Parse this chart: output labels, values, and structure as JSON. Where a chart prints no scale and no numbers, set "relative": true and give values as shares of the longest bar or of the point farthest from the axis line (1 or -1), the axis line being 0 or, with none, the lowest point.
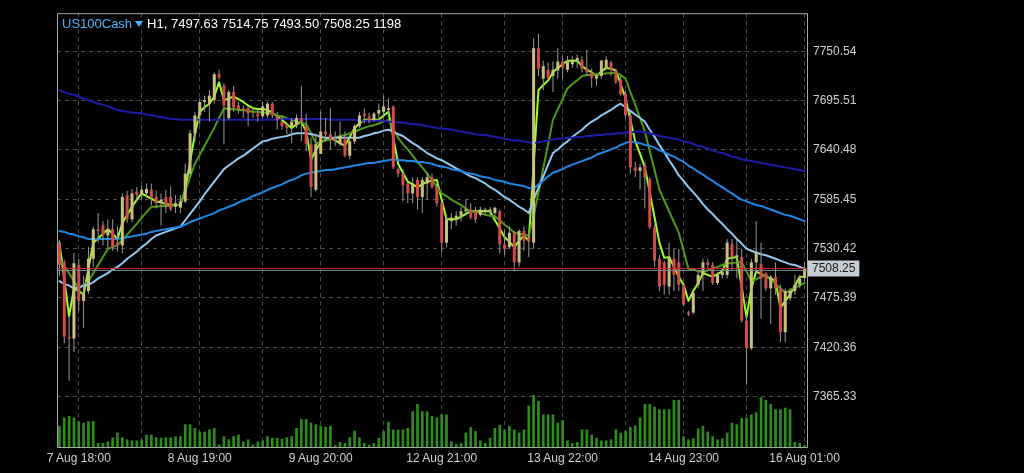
{
  "chart_data": [
    {
      "type": "candlestick",
      "title": "US100Cash",
      "subtitle": "H1, 7497.63 7514.75 7493.50 7508.25 1198",
      "categories": [
        null,
        null,
        null,
        null,
        "7 Aug 18:00",
        null,
        null,
        null,
        null,
        null,
        null,
        null,
        null,
        null,
        null,
        null,
        null,
        null,
        null,
        null,
        null,
        null,
        null,
        null,
        null,
        null,
        null,
        null,
        null,
        "8 Aug 19:00",
        null,
        null,
        null,
        null,
        null,
        null,
        null,
        null,
        null,
        null,
        null,
        null,
        null,
        null,
        null,
        null,
        null,
        null,
        null,
        null,
        null,
        null,
        null,
        null,
        "9 Aug 20:00",
        null,
        null,
        null,
        null,
        null,
        null,
        null,
        null,
        null,
        null,
        null,
        null,
        null,
        null,
        null,
        null,
        null,
        null,
        null,
        null,
        null,
        null,
        null,
        null,
        "12 Aug 21:00",
        null,
        null,
        null,
        null,
        null,
        null,
        null,
        null,
        null,
        null,
        null,
        null,
        null,
        null,
        null,
        null,
        null,
        null,
        null,
        null,
        null,
        null,
        null,
        null,
        "13 Aug 22:00",
        null,
        null,
        null,
        null,
        null,
        null,
        null,
        null,
        null,
        null,
        null,
        null,
        null,
        null,
        null,
        null,
        null,
        null,
        null,
        null,
        null,
        null,
        null,
        null,
        "14 Aug 23:00",
        null,
        null,
        null,
        null,
        null,
        null,
        null,
        null,
        null,
        null,
        null,
        null,
        null,
        null,
        null,
        null,
        null,
        null,
        null,
        null,
        null,
        null,
        null,
        null,
        "16 Aug 01:00"
      ],
      "ohlc": [
        [
          7535,
          7540,
          7500,
          7512
        ],
        [
          7515,
          7518,
          7425,
          7432
        ],
        [
          7432,
          7455,
          7383,
          7430
        ],
        [
          7430,
          7526,
          7415,
          7514
        ],
        [
          7512,
          7519,
          7461,
          7472
        ],
        [
          7472,
          7500,
          7442,
          7480
        ],
        [
          7483,
          7532,
          7480,
          7519
        ],
        [
          7519,
          7555,
          7510,
          7552
        ],
        [
          7552,
          7570,
          7537,
          7550
        ],
        [
          7556,
          7561,
          7534,
          7545
        ],
        [
          7545,
          7563,
          7530,
          7552
        ],
        [
          7552,
          7563,
          7528,
          7532
        ],
        [
          7537,
          7555,
          7527,
          7534
        ],
        [
          7534,
          7592,
          7525,
          7588
        ],
        [
          7590,
          7595,
          7559,
          7563
        ],
        [
          7563,
          7597,
          7560,
          7592
        ],
        [
          7594,
          7599,
          7582,
          7590
        ],
        [
          7590,
          7601,
          7585,
          7596
        ],
        [
          7592,
          7603,
          7587,
          7597
        ],
        [
          7596,
          7603,
          7579,
          7587
        ],
        [
          7588,
          7595,
          7575,
          7581
        ],
        [
          7582,
          7592,
          7556,
          7585
        ],
        [
          7588,
          7596,
          7570,
          7579
        ],
        [
          7588,
          7600,
          7572,
          7574
        ],
        [
          7577,
          7590,
          7570,
          7581
        ],
        [
          7576,
          7590,
          7570,
          7583
        ],
        [
          7583,
          7625,
          7581,
          7614
        ],
        [
          7614,
          7663,
          7610,
          7659
        ],
        [
          7659,
          7683,
          7649,
          7679
        ],
        [
          7679,
          7698,
          7669,
          7694
        ],
        [
          7694,
          7701,
          7683,
          7696
        ],
        [
          7692,
          7707,
          7672,
          7701
        ],
        [
          7696,
          7727,
          7692,
          7725
        ],
        [
          7725,
          7730,
          7719,
          7721
        ],
        [
          7712,
          7715,
          7647,
          7690
        ],
        [
          7676,
          7707,
          7674,
          7705
        ],
        [
          7705,
          7712,
          7683,
          7688
        ],
        [
          7690,
          7694,
          7681,
          7686
        ],
        [
          7687,
          7690,
          7676,
          7685
        ],
        [
          7687,
          7689,
          7667,
          7681
        ],
        [
          7683,
          7687,
          7676,
          7682
        ],
        [
          7681,
          7685,
          7672,
          7678
        ],
        [
          7678,
          7694,
          7676,
          7689
        ],
        [
          7679,
          7694,
          7676,
          7692
        ],
        [
          7692,
          7694,
          7676,
          7679
        ],
        [
          7678,
          7683,
          7663,
          7674
        ],
        [
          7672,
          7678,
          7663,
          7667
        ],
        [
          7668,
          7670,
          7658,
          7665
        ],
        [
          7667,
          7676,
          7648,
          7672
        ],
        [
          7668,
          7680,
          7665,
          7676
        ],
        [
          7676,
          7712,
          7650,
          7672
        ],
        [
          7667,
          7681,
          7639,
          7647
        ],
        [
          7647,
          7654,
          7588,
          7599
        ],
        [
          7596,
          7658,
          7594,
          7647
        ],
        [
          7636,
          7683,
          7636,
          7661
        ],
        [
          7661,
          7676,
          7650,
          7658
        ],
        [
          7658,
          7687,
          7641,
          7652
        ],
        [
          7654,
          7661,
          7645,
          7651
        ],
        [
          7647,
          7672,
          7645,
          7656
        ],
        [
          7654,
          7661,
          7632,
          7634
        ],
        [
          7634,
          7654,
          7630,
          7650
        ],
        [
          7650,
          7669,
          7647,
          7667
        ],
        [
          7667,
          7683,
          7665,
          7679
        ],
        [
          7681,
          7687,
          7670,
          7678
        ],
        [
          7678,
          7682,
          7670,
          7674
        ],
        [
          7674,
          7683,
          7672,
          7681
        ],
        [
          7681,
          7692,
          7674,
          7685
        ],
        [
          7683,
          7701,
          7676,
          7689
        ],
        [
          7685,
          7698,
          7679,
          7687
        ],
        [
          7689,
          7690,
          7619,
          7621
        ],
        [
          7619,
          7621,
          7610,
          7614
        ],
        [
          7614,
          7619,
          7583,
          7601
        ],
        [
          7603,
          7605,
          7581,
          7592
        ],
        [
          7592,
          7610,
          7581,
          7603
        ],
        [
          7607,
          7610,
          7574,
          7588
        ],
        [
          7588,
          7610,
          7570,
          7607
        ],
        [
          7603,
          7616,
          7585,
          7610
        ],
        [
          7610,
          7614,
          7597,
          7599
        ],
        [
          7599,
          7603,
          7577,
          7581
        ],
        [
          7581,
          7583,
          7526,
          7537
        ],
        [
          7537,
          7568,
          7532,
          7563
        ],
        [
          7561,
          7570,
          7552,
          7565
        ],
        [
          7563,
          7572,
          7556,
          7567
        ],
        [
          7567,
          7577,
          7561,
          7572
        ],
        [
          7572,
          7585,
          7567,
          7574
        ],
        [
          7574,
          7581,
          7563,
          7565
        ],
        [
          7572,
          7577,
          7559,
          7563
        ],
        [
          7568,
          7577,
          7566,
          7574
        ],
        [
          7572,
          7576,
          7568,
          7574
        ],
        [
          7572,
          7577,
          7568,
          7574
        ],
        [
          7570,
          7577,
          7566,
          7576
        ],
        [
          7572,
          7574,
          7525,
          7535
        ],
        [
          7535,
          7552,
          7523,
          7530
        ],
        [
          7532,
          7555,
          7530,
          7548
        ],
        [
          7548,
          7550,
          7505,
          7515
        ],
        [
          7515,
          7552,
          7510,
          7550
        ],
        [
          7550,
          7555,
          7528,
          7539
        ],
        [
          7543,
          7552,
          7521,
          7539
        ],
        [
          7537,
          7765,
          7530,
          7754
        ],
        [
          7754,
          7770,
          7723,
          7731
        ],
        [
          7720,
          7740,
          7707,
          7734
        ],
        [
          7730,
          7738,
          7720,
          7721
        ],
        [
          7723,
          7739,
          7705,
          7730
        ],
        [
          7729,
          7754,
          7720,
          7739
        ],
        [
          7739,
          7745,
          7720,
          7732
        ],
        [
          7730,
          7745,
          7727,
          7739
        ],
        [
          7736,
          7745,
          7732,
          7741
        ],
        [
          7740,
          7747,
          7732,
          7743
        ],
        [
          7741,
          7745,
          7727,
          7731
        ],
        [
          7731,
          7752,
          7723,
          7727
        ],
        [
          7727,
          7731,
          7710,
          7721
        ],
        [
          7720,
          7725,
          7712,
          7723
        ],
        [
          7723,
          7741,
          7720,
          7740
        ],
        [
          7732,
          7745,
          7730,
          7741
        ],
        [
          7738,
          7740,
          7723,
          7730
        ],
        [
          7729,
          7731,
          7714,
          7716
        ],
        [
          7719,
          7723,
          7701,
          7703
        ],
        [
          7703,
          7707,
          7676,
          7679
        ],
        [
          7679,
          7683,
          7614,
          7621
        ],
        [
          7621,
          7627,
          7610,
          7617
        ],
        [
          7617,
          7625,
          7596,
          7621
        ],
        [
          7623,
          7627,
          7575,
          7610
        ],
        [
          7608,
          7610,
          7552,
          7554
        ],
        [
          7554,
          7557,
          7510,
          7517
        ],
        [
          7519,
          7523,
          7483,
          7488
        ],
        [
          7515,
          7517,
          7479,
          7490
        ],
        [
          7488,
          7537,
          7479,
          7521
        ],
        [
          7519,
          7530,
          7483,
          7501
        ],
        [
          7515,
          7530,
          7483,
          7490
        ],
        [
          7490,
          7490,
          7466,
          7468
        ],
        [
          7459,
          7461,
          7455,
          7457
        ],
        [
          7459,
          7483,
          7457,
          7481
        ],
        [
          7490,
          7504,
          7486,
          7501
        ],
        [
          7501,
          7519,
          7483,
          7515
        ],
        [
          7515,
          7519,
          7508,
          7512
        ],
        [
          7512,
          7515,
          7490,
          7492
        ],
        [
          7492,
          7504,
          7490,
          7501
        ],
        [
          7501,
          7508,
          7497,
          7504
        ],
        [
          7501,
          7541,
          7497,
          7537
        ],
        [
          7535,
          7541,
          7506,
          7521
        ],
        [
          7521,
          7541,
          7497,
          7523
        ],
        [
          7521,
          7530,
          7448,
          7450
        ],
        [
          7450,
          7457,
          7379,
          7419
        ],
        [
          7419,
          7519,
          7417,
          7515
        ],
        [
          7515,
          7561,
          7503,
          7526
        ],
        [
          7513,
          7537,
          7452,
          7497
        ],
        [
          7503,
          7504,
          7483,
          7486
        ],
        [
          7486,
          7501,
          7446,
          7499
        ],
        [
          7499,
          7515,
          7479,
          7486
        ],
        [
          7486,
          7490,
          7426,
          7437
        ],
        [
          7437,
          7486,
          7426,
          7483
        ],
        [
          7475,
          7486,
          7472,
          7483
        ],
        [
          7483,
          7501,
          7479,
          7490
        ],
        [
          7490,
          7501,
          7486,
          7497
        ],
        [
          7497.63,
          7514.75,
          7493.5,
          7508.25
        ]
      ],
      "series": [
        {
          "type": "line",
          "color": "#1c1ca8",
          "values": [
            7707,
            7705,
            7703,
            7702,
            7700,
            7698,
            7696,
            7694,
            7692,
            7691,
            7689,
            7687,
            7685,
            7684,
            7683,
            7682,
            7682,
            7681,
            7680,
            7679,
            7678,
            7677,
            7676,
            7675,
            7675,
            7674,
            7674,
            7674,
            7674,
            7674,
            7674,
            7674,
            7674,
            7674,
            7674,
            7674,
            7674,
            7674,
            7674,
            7674,
            7674,
            7674,
            7674,
            7674,
            7674,
            7674,
            7675,
            7675,
            7675,
            7675,
            7675,
            7675,
            7675,
            7675,
            7675,
            7675,
            7674,
            7674,
            7674,
            7674,
            7674,
            7674,
            7673,
            7673,
            7673,
            7673,
            7673,
            7673,
            7672,
            7672,
            7671,
            7671,
            7670,
            7669,
            7669,
            7668,
            7667,
            7666,
            7665,
            7664,
            7664,
            7663,
            7662,
            7661,
            7660,
            7659,
            7658,
            7657,
            7657,
            7656,
            7655,
            7654,
            7653,
            7652,
            7651,
            7651,
            7650,
            7649,
            7648,
            7649,
            7650,
            7651,
            7652,
            7653,
            7653,
            7654,
            7654,
            7655,
            7655,
            7656,
            7656,
            7657,
            7657,
            7658,
            7658,
            7659,
            7659,
            7660,
            7660,
            7661,
            7661,
            7660,
            7659,
            7658,
            7656,
            7655,
            7654,
            7653,
            7652,
            7650,
            7649,
            7647,
            7645,
            7644,
            7642,
            7640,
            7638,
            7637,
            7635,
            7633,
            7632,
            7630,
            7629,
            7628,
            7627,
            7626,
            7625,
            7624,
            7623,
            7622,
            7621,
            7620,
            7619,
            7618,
            7617
          ]
        },
        {
          "type": "line",
          "color": "#1e88e5",
          "values": [
            7550,
            7549,
            7547,
            7546,
            7544,
            7543,
            7541,
            7541,
            7541,
            7541,
            7541,
            7541,
            7541,
            7542,
            7543,
            7544,
            7545,
            7546,
            7547,
            7549,
            7550,
            7551,
            7552,
            7553,
            7554,
            7555,
            7557,
            7560,
            7562,
            7564,
            7566,
            7568,
            7570,
            7573,
            7575,
            7577,
            7579,
            7582,
            7584,
            7586,
            7589,
            7591,
            7593,
            7596,
            7598,
            7600,
            7602,
            7605,
            7607,
            7609,
            7612,
            7614,
            7615,
            7616,
            7617,
            7618,
            7618,
            7619,
            7620,
            7621,
            7622,
            7623,
            7624,
            7625,
            7626,
            7626,
            7627,
            7628,
            7629,
            7630,
            7629,
            7629,
            7628,
            7628,
            7627,
            7627,
            7626,
            7625,
            7623,
            7622,
            7621,
            7619,
            7618,
            7617,
            7615,
            7614,
            7613,
            7611,
            7610,
            7609,
            7607,
            7606,
            7605,
            7603,
            7602,
            7601,
            7600,
            7598,
            7597,
            7602,
            7606,
            7611,
            7615,
            7617,
            7619,
            7622,
            7624,
            7626,
            7628,
            7630,
            7632,
            7635,
            7637,
            7639,
            7641,
            7643,
            7646,
            7648,
            7650,
            7649,
            7648,
            7646,
            7645,
            7643,
            7640,
            7638,
            7635,
            7633,
            7630,
            7627,
            7623,
            7620,
            7616,
            7613,
            7609,
            7606,
            7602,
            7599,
            7595,
            7592,
            7588,
            7585,
            7583,
            7581,
            7579,
            7578,
            7576,
            7574,
            7572,
            7570,
            7568,
            7567,
            7565,
            7563,
            7561
          ]
        },
        {
          "type": "line",
          "color": "#92c8f2",
          "values": [
            7494,
            7491,
            7489,
            7486,
            7487,
            7489,
            7490,
            7493,
            7497,
            7500,
            7503,
            7507,
            7510,
            7514,
            7519,
            7523,
            7527,
            7532,
            7536,
            7541,
            7545,
            7547,
            7549,
            7551,
            7553,
            7555,
            7562,
            7569,
            7576,
            7583,
            7591,
            7598,
            7605,
            7612,
            7619,
            7623,
            7627,
            7631,
            7634,
            7638,
            7642,
            7646,
            7650,
            7651,
            7653,
            7654,
            7655,
            7656,
            7658,
            7659,
            7659,
            7659,
            7658,
            7657,
            7655,
            7654,
            7654,
            7654,
            7654,
            7654,
            7654,
            7654,
            7654,
            7656,
            7657,
            7659,
            7660,
            7662,
            7663,
            7661,
            7658,
            7656,
            7652,
            7648,
            7645,
            7641,
            7637,
            7634,
            7631,
            7629,
            7626,
            7623,
            7620,
            7617,
            7614,
            7611,
            7609,
            7606,
            7603,
            7599,
            7596,
            7592,
            7588,
            7585,
            7581,
            7577,
            7574,
            7570,
            7585,
            7598,
            7611,
            7624,
            7637,
            7641,
            7646,
            7650,
            7655,
            7659,
            7663,
            7668,
            7672,
            7675,
            7679,
            7682,
            7685,
            7689,
            7692,
            7688,
            7684,
            7680,
            7676,
            7672,
            7663,
            7655,
            7646,
            7638,
            7629,
            7621,
            7612,
            7606,
            7599,
            7593,
            7587,
            7580,
            7574,
            7569,
            7563,
            7558,
            7552,
            7547,
            7541,
            7536,
            7530,
            7528,
            7526,
            7524,
            7523,
            7521,
            7519,
            7517,
            7515,
            7513,
            7512,
            7510,
            7508
          ]
        },
        {
          "type": "line",
          "color": "#4c9a10",
          "values": [
            7519,
            7511,
            7503,
            7494,
            7486,
            7490,
            7494,
            7503,
            7512,
            7521,
            7530,
            7532,
            7534,
            7540,
            7546,
            7552,
            7558,
            7565,
            7571,
            7577,
            7577,
            7578,
            7578,
            7578,
            7579,
            7579,
            7594,
            7610,
            7625,
            7635,
            7645,
            7655,
            7665,
            7676,
            7687,
            7686,
            7686,
            7685,
            7685,
            7684,
            7683,
            7683,
            7682,
            7682,
            7681,
            7679,
            7678,
            7676,
            7674,
            7672,
            7671,
            7669,
            7659,
            7648,
            7649,
            7651,
            7652,
            7654,
            7656,
            7657,
            7659,
            7661,
            7663,
            7665,
            7667,
            7668,
            7670,
            7672,
            7674,
            7664,
            7654,
            7647,
            7641,
            7634,
            7627,
            7621,
            7614,
            7607,
            7599,
            7592,
            7589,
            7585,
            7582,
            7579,
            7575,
            7572,
            7571,
            7570,
            7568,
            7567,
            7566,
            7562,
            7557,
            7553,
            7548,
            7547,
            7546,
            7545,
            7566,
            7593,
            7620,
            7647,
            7674,
            7686,
            7697,
            7709,
            7714,
            7718,
            7723,
            7724,
            7724,
            7725,
            7725,
            7726,
            7726,
            7727,
            7724,
            7720,
            7705,
            7691,
            7676,
            7661,
            7639,
            7618,
            7596,
            7584,
            7572,
            7560,
            7548,
            7528,
            7508,
            7507,
            7505,
            7504,
            7506,
            7508,
            7510,
            7512,
            7514,
            7514,
            7515,
            7515,
            7505,
            7494,
            7496,
            7499,
            7501,
            7496,
            7491,
            7486,
            7481,
            7484,
            7487,
            7489,
            7492
          ]
        },
        {
          "type": "line",
          "color": "#9cff22",
          "values": [
            7537,
            null,
            7455,
            7486,
            7483,
            7479,
            null,
            7537,
            7542,
            7547,
            7552,
            7547,
            7541,
            7559,
            7568,
            7577,
            7585,
            7592,
            7589,
            7586,
            7583,
            7582,
            7580,
            7579,
            7579,
            7579,
            7596,
            null,
            7658,
            7683,
            7688,
            7692,
            7700,
            7716,
            7696,
            7698,
            7700,
            7697,
            7694,
            7690,
            7687,
            7686,
            7686,
            7685,
            7682,
            7678,
            7674,
            7669,
            7665,
            7669,
            7672,
            7661,
            7630,
            7640,
            7649,
            7652,
            7654,
            7651,
            7648,
            7645,
            7655,
            7665,
            7670,
            7674,
            7674,
            7674,
            7674,
            7679,
            7683,
            7654,
            7625,
            7615,
            7605,
            7602,
            7599,
            7602,
            7605,
            7606,
            7607,
            7585,
            7563,
            7563,
            7563,
            7566,
            7569,
            7572,
            7572,
            7572,
            7572,
            7572,
            7562,
            7553,
            7543,
            7538,
            7532,
            7539,
            7545,
            7539,
            null,
            7707,
            7713,
            7718,
            7727,
            7732,
            7736,
            7740,
            7740,
            7740,
            7734,
            7730,
            7727,
            7723,
            7728,
            7732,
            7731,
            7729,
            7714,
            7698,
            7674,
            7650,
            7636,
            7621,
            null,
            7565,
            7537,
            7520,
            7521,
            7510,
            7499,
            7490,
            7472,
            7483,
            7492,
            7503,
            7501,
            7499,
            7502,
            7505,
            7519,
            7520,
            7521,
            null,
            7454,
            7486,
            7505,
            7502,
            7499,
            7497,
            7494,
            7464,
            7472,
            7479,
            7489,
            7499,
            7499
          ]
        }
      ],
      "ylim": [
        7309,
        7793
      ],
      "yticks": [
        7365.33,
        7420.36,
        7475.39,
        7530.42,
        7585.45,
        7640.48,
        7695.51,
        7750.54
      ],
      "ref_lines": [
        {
          "axis": "y",
          "value": 7508.25,
          "label": "7508.25",
          "color": "#d42a2a"
        },
        {
          "axis": "y",
          "value": 7506,
          "color": "#7f8a96"
        }
      ],
      "grid": true,
      "legend": false
    },
    {
      "type": "bar",
      "relative": true,
      "color": "#2c8c1c",
      "categories": [
        null,
        null,
        null,
        null,
        null,
        null,
        null,
        null,
        null,
        null,
        null,
        null,
        null,
        null,
        null,
        null,
        null,
        null,
        null,
        null,
        null,
        null,
        null,
        null,
        null,
        null,
        null,
        null,
        null,
        null,
        null,
        null,
        null,
        null,
        null,
        null,
        null,
        null,
        null,
        null,
        null,
        null,
        null,
        null,
        null,
        null,
        null,
        null,
        null,
        null,
        null,
        null,
        null,
        null,
        null,
        null,
        null,
        null,
        null,
        null,
        null,
        null,
        null,
        null,
        null,
        null,
        null,
        null,
        null,
        null,
        null,
        null,
        null,
        null,
        null,
        null,
        null,
        null,
        null,
        null,
        null,
        null,
        null,
        null,
        null,
        null,
        null,
        null,
        null,
        null,
        null,
        null,
        null,
        null,
        null,
        null,
        null,
        null,
        null,
        null,
        null,
        null,
        null,
        null,
        null,
        null,
        null,
        null,
        null,
        null,
        null,
        null,
        null,
        null,
        null,
        null,
        null,
        null,
        null,
        null,
        null,
        null,
        null,
        null,
        null,
        null,
        null,
        null,
        null,
        null,
        null,
        null,
        null,
        null,
        null,
        null,
        null,
        null,
        null,
        null,
        null,
        null,
        null,
        null,
        null,
        null,
        null,
        null,
        null,
        null,
        null,
        null,
        null,
        null,
        null
      ],
      "values": [
        0.4,
        0.56,
        0.59,
        0.56,
        0.49,
        0.46,
        0.49,
        0.49,
        0.07,
        0.07,
        0.1,
        0.18,
        0.27,
        0.18,
        0.14,
        0.12,
        0.12,
        0.14,
        0.23,
        0.23,
        0.18,
        0.17,
        0.18,
        0.18,
        0.2,
        0.2,
        0.43,
        0.43,
        0.36,
        0.29,
        0.29,
        0.33,
        0.36,
        0.04,
        0.2,
        0.14,
        0.2,
        0.23,
        0.1,
        0.14,
        0.04,
        0.1,
        0.12,
        0.2,
        0.17,
        0.17,
        0.15,
        0.18,
        0.2,
        0.36,
        0.53,
        0.53,
        0.46,
        0.43,
        0.4,
        0.38,
        0.4,
        0.03,
        0.09,
        0.07,
        0.18,
        0.31,
        0.18,
        0.07,
        0.04,
        0.07,
        0.17,
        0.3,
        0.48,
        0.33,
        0.33,
        0.33,
        0.36,
        0.68,
        0.82,
        0.68,
        0.68,
        0.59,
        0.56,
        0.62,
        0.62,
        0.1,
        0.05,
        0.07,
        0.27,
        0.38,
        0.3,
        0.12,
        0.07,
        0.17,
        0.36,
        0.42,
        0.33,
        0.4,
        0.33,
        0.27,
        0.33,
        0.79,
        1,
        0.88,
        0.62,
        0.62,
        0.62,
        0.46,
        0.51,
        0.12,
        0.07,
        0.09,
        0.33,
        0.33,
        0.23,
        0.17,
        0.12,
        0.12,
        0.14,
        0.33,
        0.27,
        0.3,
        0.38,
        0.41,
        0.56,
        0.82,
        0.82,
        0.77,
        0.72,
        0.72,
        0.72,
        0.9,
        0.9,
        0.2,
        0.14,
        0.16,
        0.35,
        0.4,
        0.29,
        0.2,
        0.14,
        0.16,
        0.27,
        0.46,
        0.43,
        0.55,
        0.56,
        0.62,
        0.66,
        0.95,
        0.9,
        0.82,
        0.72,
        0.72,
        0.75,
        0.72,
        0.09,
        0.07,
        0.03
      ]
    }
  ]
}
